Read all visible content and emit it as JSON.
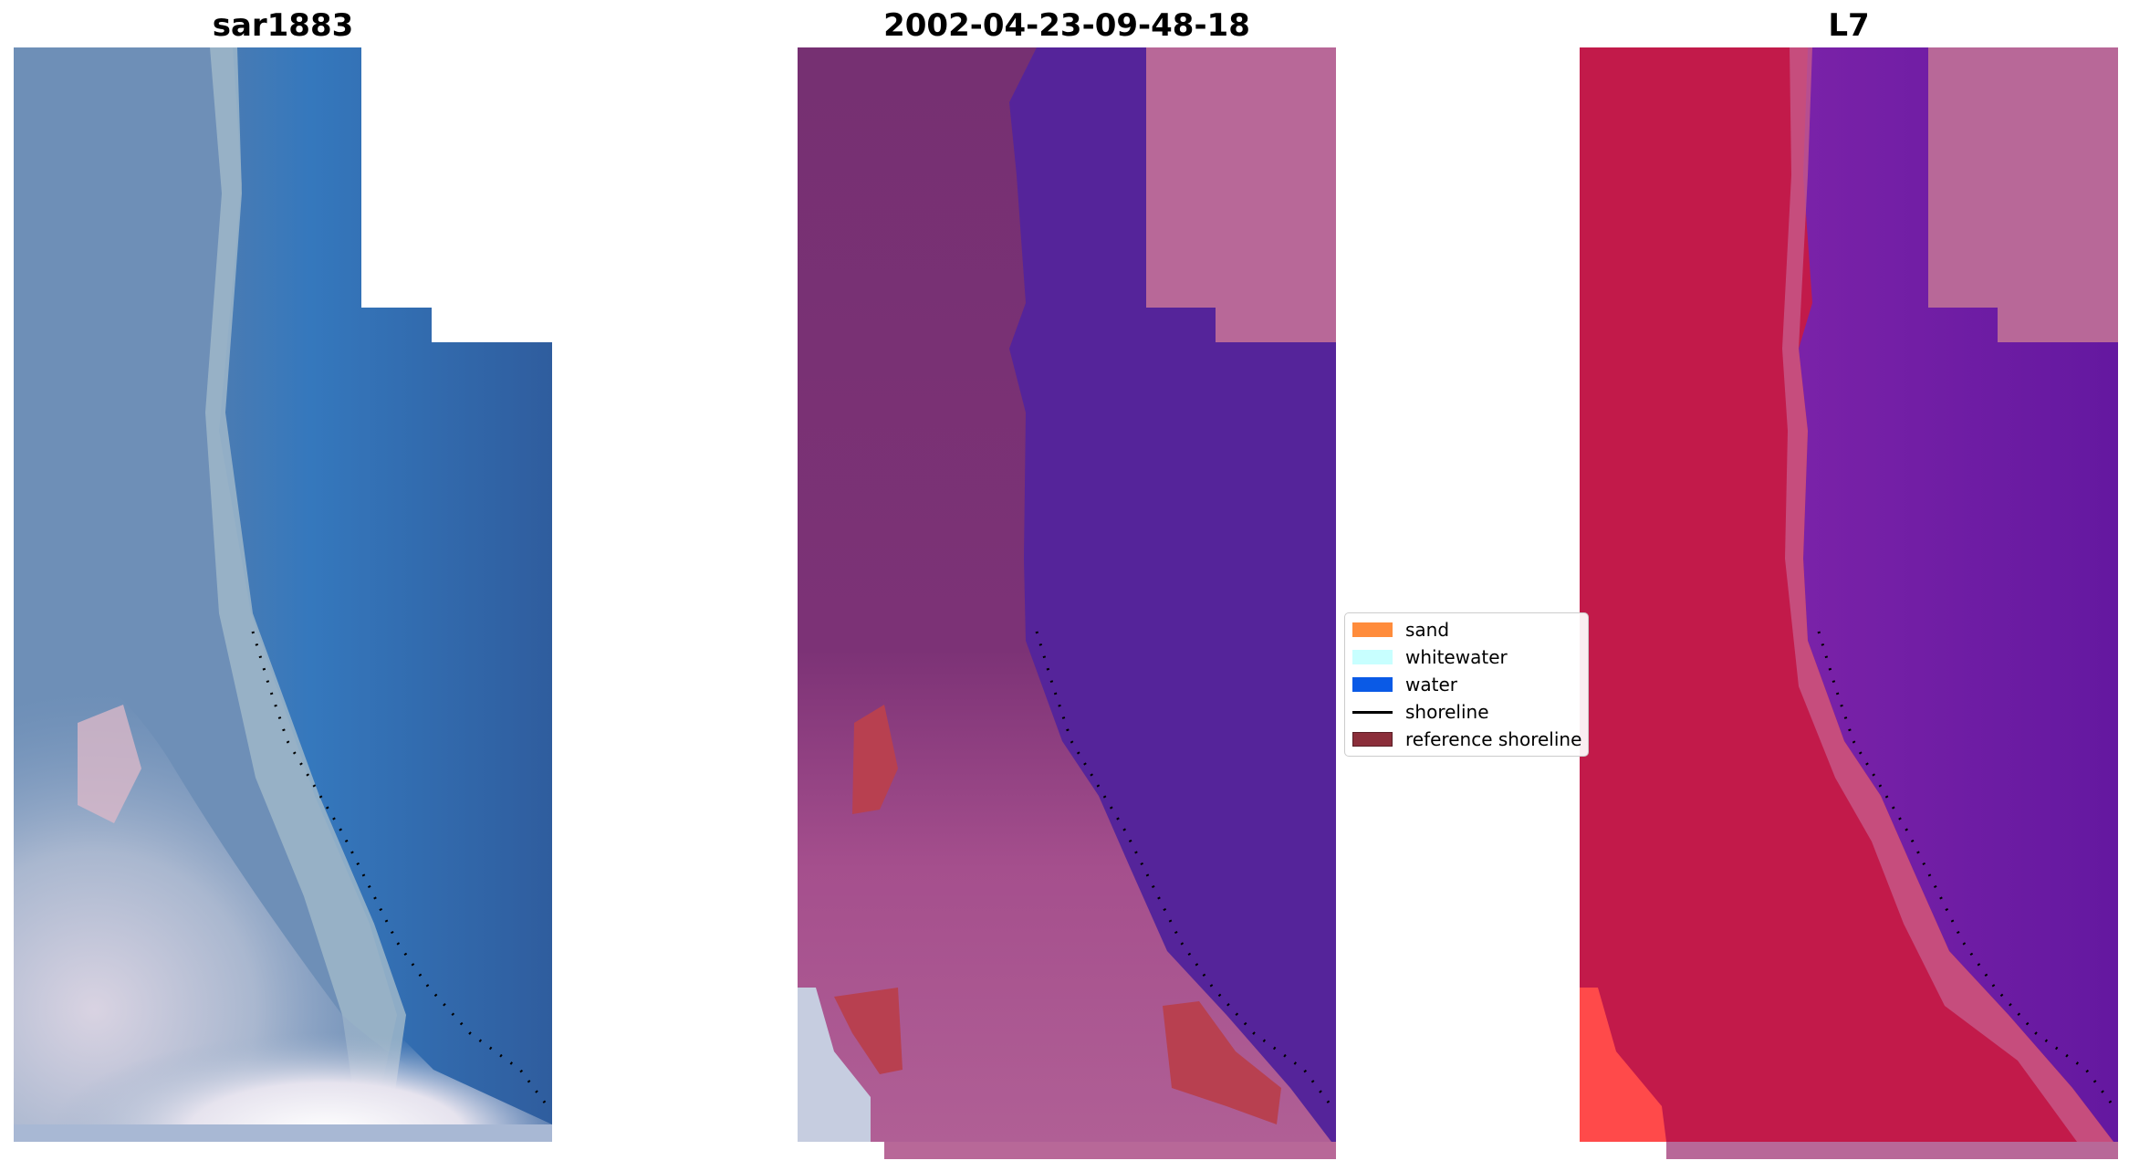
{
  "panels": [
    {
      "title": "sar1883"
    },
    {
      "title": "2002-04-23-09-48-18"
    },
    {
      "title": "L7"
    }
  ],
  "legend": {
    "items": [
      {
        "label": "sand",
        "color": "#ff8c3c",
        "kind": "patch"
      },
      {
        "label": "whitewater",
        "color": "#c8ffff",
        "kind": "patch"
      },
      {
        "label": "water",
        "color": "#0a5ae6",
        "kind": "patch"
      },
      {
        "label": "shoreline",
        "color": "#000000",
        "kind": "line"
      },
      {
        "label": "reference shoreline",
        "color": "#8b2e3a",
        "kind": "patch"
      }
    ]
  },
  "colors": {
    "rgb_water": "#2f63a5",
    "rgb_land": "#6d8db5",
    "rgb_surf": "#e6e4ee",
    "class_land": "#7a3070",
    "class_water": "#55249a",
    "class_nodata": "#b86898",
    "class_sand": "#b84050",
    "mndwi_land": "#c21a4a",
    "mndwi_water": "#6a1aa0",
    "mndwi_nodata": "#b86898"
  }
}
